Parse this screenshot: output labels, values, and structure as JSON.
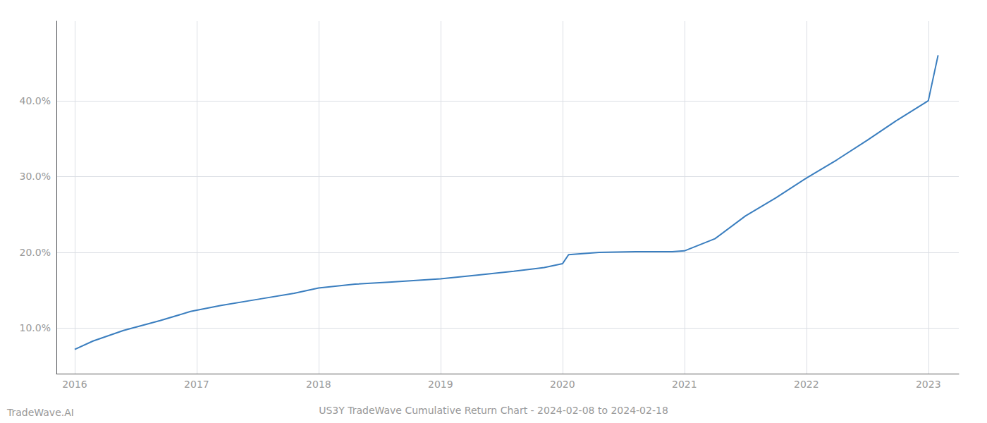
{
  "chart_data": {
    "type": "line",
    "title": "US3Y TradeWave Cumulative Return Chart - 2024-02-08 to 2024-02-18",
    "annotations": [
      "TradeWave.AI"
    ],
    "x": [
      2016.0,
      2016.15,
      2016.4,
      2016.7,
      2016.95,
      2017.2,
      2017.5,
      2017.8,
      2018.0,
      2018.3,
      2018.6,
      2019.0,
      2019.3,
      2019.6,
      2019.85,
      2020.0,
      2020.05,
      2020.3,
      2020.6,
      2020.9,
      2021.0,
      2021.25,
      2021.5,
      2021.75,
      2022.0,
      2022.25,
      2022.5,
      2022.75,
      2023.0,
      2023.08
    ],
    "values": [
      0.072,
      0.083,
      0.097,
      0.11,
      0.122,
      0.13,
      0.138,
      0.146,
      0.153,
      0.158,
      0.161,
      0.165,
      0.17,
      0.175,
      0.18,
      0.185,
      0.197,
      0.2,
      0.201,
      0.201,
      0.202,
      0.218,
      0.248,
      0.272,
      0.298,
      0.322,
      0.348,
      0.375,
      0.4,
      0.46
    ],
    "color": "#3a7ebf",
    "xlim": [
      2015.85,
      2023.25
    ],
    "ylim": [
      0.04,
      0.505
    ],
    "xticks": [
      2016,
      2017,
      2018,
      2019,
      2020,
      2021,
      2022,
      2023
    ],
    "yticks": [
      {
        "value": 0.1,
        "label": "10.0%"
      },
      {
        "value": 0.2,
        "label": "20.0%"
      },
      {
        "value": 0.3,
        "label": "30.0%"
      },
      {
        "value": 0.4,
        "label": "40.0%"
      }
    ],
    "grid": true
  }
}
